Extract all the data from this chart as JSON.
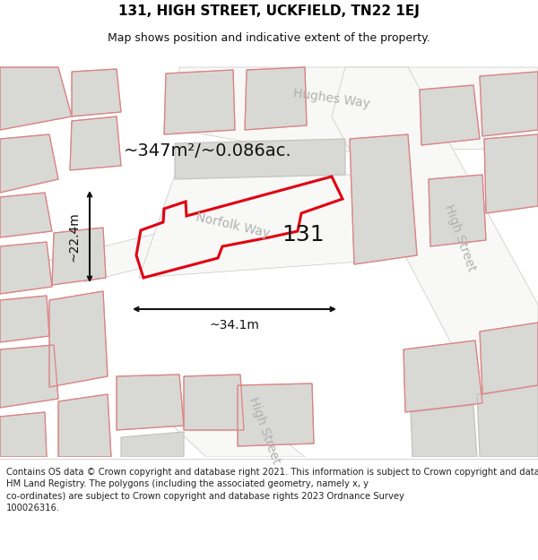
{
  "title": "131, HIGH STREET, UCKFIELD, TN22 1EJ",
  "subtitle": "Map shows position and indicative extent of the property.",
  "area_label": "~347m²/~0.086ac.",
  "width_label": "~34.1m",
  "height_label": "~22.4m",
  "property_number": "131",
  "footer_line1": "Contains OS data © Crown copyright and database right 2021. This information is subject to Crown copyright and database rights 2023 and is reproduced with the permission of",
  "footer_line2": "HM Land Registry. The polygons (including the associated geometry, namely x, y",
  "footer_line3": "co-ordinates) are subject to Crown copyright and database rights 2023 Ordnance Survey",
  "footer_line4": "100026316.",
  "bg_color": "#eeede8",
  "building_fill": "#d8d8d5",
  "building_edge": "#c0c0bc",
  "road_fill": "#f8f8f6",
  "red_line": "#e00010",
  "pink_line": "#e08080",
  "gray_line": "#c8c8c8",
  "street_color": "#b0b0b0",
  "title_fs": 11,
  "subtitle_fs": 9,
  "footer_fs": 7.2,
  "area_fs": 14,
  "num_fs": 18,
  "meas_fs": 10,
  "street_fs": 10
}
